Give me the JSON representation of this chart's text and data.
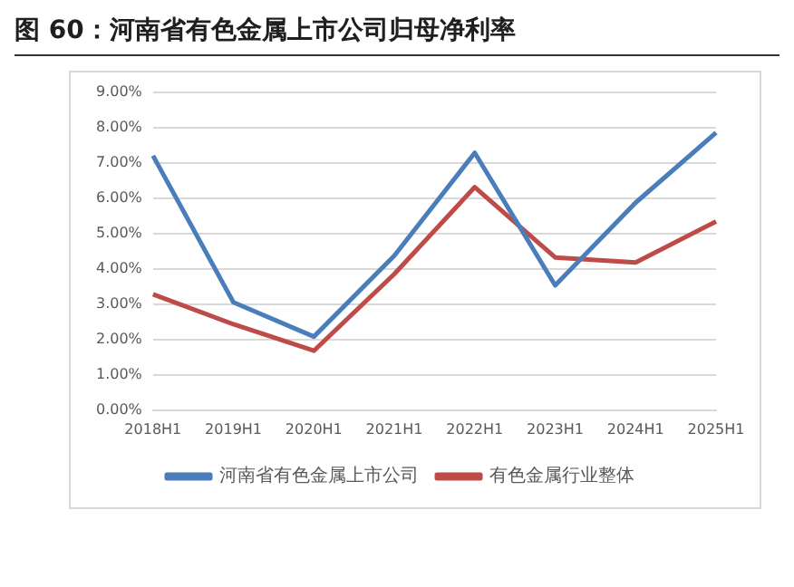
{
  "chart_data": {
    "type": "line",
    "title": "图 60：河南省有色金属上市公司归母净利率",
    "categories": [
      "2018H1",
      "2019H1",
      "2020H1",
      "2021H1",
      "2022H1",
      "2023H1",
      "2024H1",
      "2025H1"
    ],
    "series": [
      {
        "name": "河南省有色金属上市公司",
        "color": "#4a7ebb",
        "values": [
          7.2,
          3.05,
          2.08,
          4.37,
          7.28,
          3.53,
          5.87,
          7.85
        ]
      },
      {
        "name": "有色金属行业整体",
        "color": "#be4b48",
        "values": [
          3.28,
          2.43,
          1.68,
          3.85,
          6.31,
          4.32,
          4.18,
          5.34
        ]
      }
    ],
    "ylim": [
      0,
      9
    ],
    "yticks": [
      {
        "value": 0,
        "label": "0.00%"
      },
      {
        "value": 1,
        "label": "1.00%"
      },
      {
        "value": 2,
        "label": "2.00%"
      },
      {
        "value": 3,
        "label": "3.00%"
      },
      {
        "value": 4,
        "label": "4.00%"
      },
      {
        "value": 5,
        "label": "5.00%"
      },
      {
        "value": 6,
        "label": "6.00%"
      },
      {
        "value": 7,
        "label": "7.00%"
      },
      {
        "value": 8,
        "label": "8.00%"
      },
      {
        "value": 9,
        "label": "9.00%"
      }
    ],
    "grid": "y",
    "legend": "bottom",
    "marker": "none",
    "line_style": "solid"
  }
}
